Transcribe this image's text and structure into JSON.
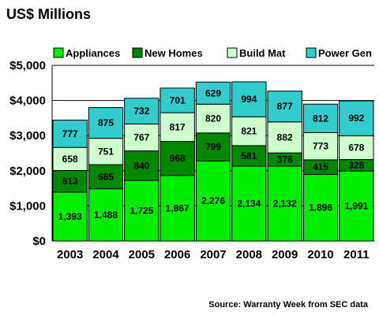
{
  "chart_data": {
    "type": "bar",
    "stacked": true,
    "title": "US$ Millions",
    "source": "Source: Warranty Week from SEC data",
    "categories": [
      "2003",
      "2004",
      "2005",
      "2006",
      "2007",
      "2008",
      "2009",
      "2010",
      "2011"
    ],
    "series": [
      {
        "name": "Appliances",
        "color": "#00ee00",
        "values": [
          1393,
          1488,
          1725,
          1867,
          2276,
          2134,
          2132,
          1896,
          1991
        ]
      },
      {
        "name": "New Homes",
        "color": "#008800",
        "values": [
          613,
          685,
          840,
          968,
          799,
          581,
          376,
          415,
          328
        ]
      },
      {
        "name": "Build Mat",
        "color": "#ccffcc",
        "values": [
          658,
          751,
          767,
          817,
          820,
          821,
          882,
          773,
          678
        ]
      },
      {
        "name": "Power Gen",
        "color": "#33cccc",
        "values": [
          777,
          875,
          732,
          701,
          629,
          994,
          877,
          812,
          992
        ]
      }
    ],
    "data_labels": {
      "Appliances": [
        "1,393",
        "1,488",
        "1,725",
        "1,867",
        "2,276",
        "2,134",
        "2,132",
        "1,896",
        "1,991"
      ],
      "New Homes": [
        "613",
        "685",
        "840",
        "968",
        "799",
        "581",
        "376",
        "415",
        "328"
      ],
      "Build Mat": [
        "658",
        "751",
        "767",
        "817",
        "820",
        "821",
        "882",
        "773",
        "678"
      ],
      "Power Gen": [
        "777",
        "875",
        "732",
        "701",
        "629",
        "994",
        "877",
        "812",
        "992"
      ]
    },
    "ylim": [
      0,
      5000
    ],
    "yticks": [
      0,
      1000,
      2000,
      3000,
      4000,
      5000
    ],
    "ytick_labels": [
      "$0",
      "$1,000",
      "$2,000",
      "$3,000",
      "$4,000",
      "$5,000"
    ],
    "grid": true,
    "legend_position": "top",
    "plot_background": "#ffffff"
  }
}
